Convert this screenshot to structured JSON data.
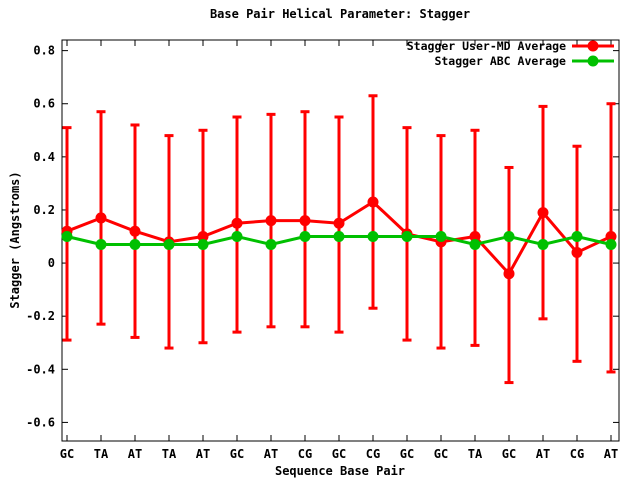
{
  "chart_data": {
    "type": "line",
    "title": "Base Pair Helical Parameter: Stagger",
    "xlabel": "Sequence Base Pair",
    "ylabel": "Stagger (Angstroms)",
    "categories": [
      "GC",
      "TA",
      "AT",
      "TA",
      "AT",
      "GC",
      "AT",
      "CG",
      "GC",
      "CG",
      "GC",
      "GC",
      "TA",
      "GC",
      "AT",
      "CG",
      "AT"
    ],
    "ylim": [
      -0.67,
      0.84
    ],
    "yticks": [
      0.8,
      0.6,
      0.4,
      0.2,
      0,
      -0.2,
      -0.4,
      -0.6
    ],
    "ytick_labels": [
      "0.8",
      "0.6",
      "0.4",
      "0.2",
      "0",
      "-0.2",
      "-0.4",
      "-0.6"
    ],
    "grid": false,
    "legend_position": "top-right-inside",
    "series": [
      {
        "name": "Stagger User-MD Average",
        "color": "#ff0000",
        "marker": "filled-circle",
        "style": "errorbars",
        "values": [
          0.12,
          0.17,
          0.12,
          0.08,
          0.1,
          0.15,
          0.16,
          0.16,
          0.15,
          0.23,
          0.11,
          0.08,
          0.1,
          -0.04,
          0.19,
          0.04,
          0.1
        ],
        "err_high": [
          0.51,
          0.57,
          0.52,
          0.48,
          0.5,
          0.55,
          0.56,
          0.57,
          0.55,
          0.63,
          0.51,
          0.48,
          0.5,
          0.36,
          0.59,
          0.44,
          0.6
        ],
        "err_low": [
          -0.29,
          -0.23,
          -0.28,
          -0.32,
          -0.3,
          -0.26,
          -0.24,
          -0.24,
          -0.26,
          -0.17,
          -0.29,
          -0.32,
          -0.31,
          -0.45,
          -0.21,
          -0.37,
          -0.41
        ]
      },
      {
        "name": "Stagger ABC Average",
        "color": "#00c000",
        "marker": "filled-circle",
        "style": "line-points",
        "values": [
          0.1,
          0.07,
          0.07,
          0.07,
          0.07,
          0.1,
          0.07,
          0.1,
          0.1,
          0.1,
          0.1,
          0.1,
          0.07,
          0.1,
          0.07,
          0.1,
          0.07
        ]
      }
    ]
  },
  "colors": {
    "background": "#ffffff",
    "axis": "#000000",
    "text": "#000000"
  }
}
